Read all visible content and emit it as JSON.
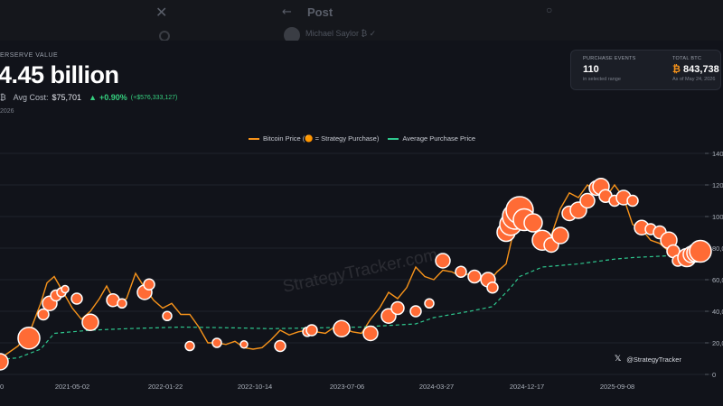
{
  "background": {
    "post_label": "Post",
    "author": "Michael Saylor ₿ ✓"
  },
  "header": {
    "reserve_label": "ERSERVE VALUE",
    "reserve_value": "4.45 billion",
    "currency_glyph": "₿",
    "avg_cost_label": "Avg Cost:",
    "avg_cost": "$75,701",
    "change_arrow": "▲",
    "change_pct": "+0.90%",
    "change_abs": "(+$576,333,127)",
    "date_fragment": "2026"
  },
  "stats": {
    "purchase_events_label": "PURCHASE EVENTS",
    "purchase_events_value": "110",
    "purchase_events_sub": "in selected range",
    "total_btc_label": "TOTAL BTC",
    "total_btc_glyph": "₿",
    "total_btc_value": "843,738",
    "total_btc_sub": "As of May 24, 2026"
  },
  "legend": {
    "price": "Bitcoin Price (🟠 = Strategy Purchase)",
    "avg": "Average Purchase Price"
  },
  "watermark": "StrategyTracker.com",
  "credit": {
    "x_glyph": "𝕏",
    "handle": "@StrategyTracker"
  },
  "colors": {
    "price": "#f7931a",
    "avg": "#2ec78e",
    "bubble": "#ff6b35",
    "bubble_stroke": "#ffffff"
  },
  "chart_data": {
    "type": "line",
    "x_tick_labels": [
      "0",
      "2021-05-02",
      "2022-01-22",
      "2022-10-14",
      "2023-07-06",
      "2024-03-27",
      "2024-12-17",
      "2025-09-08"
    ],
    "y_tick_labels": [
      "0",
      "20,0",
      "40,0",
      "60,0",
      "80,0",
      "100,0",
      "120,0",
      "140,0"
    ],
    "ylim": [
      0,
      140000
    ],
    "series": [
      {
        "name": "Bitcoin Price (🟠 = Strategy Purchase)",
        "x": [
          0,
          20,
          35,
          45,
          52,
          60,
          70,
          80,
          90,
          100,
          110,
          118,
          128,
          140,
          150,
          160,
          170,
          180,
          190,
          200,
          210,
          220,
          230,
          240,
          250,
          260,
          270,
          280,
          290,
          300,
          310,
          320,
          330,
          340,
          350,
          360,
          370,
          380,
          390,
          400,
          410,
          420,
          430,
          440,
          450,
          460,
          470,
          480,
          490,
          500,
          510,
          520,
          530,
          540,
          550,
          560,
          570,
          580,
          590,
          600,
          610,
          620,
          630,
          640,
          650,
          660,
          670,
          680,
          690,
          700,
          710,
          720,
          730,
          740,
          750,
          760,
          770,
          780
        ],
        "y": [
          10000,
          18000,
          30000,
          45000,
          58000,
          62000,
          52000,
          42000,
          35000,
          40000,
          48000,
          56000,
          45000,
          48000,
          64000,
          55000,
          47000,
          42000,
          45000,
          38000,
          38000,
          30000,
          20000,
          20000,
          19000,
          21000,
          17000,
          16000,
          17000,
          22000,
          28000,
          25000,
          27000,
          28000,
          27000,
          26000,
          30000,
          29000,
          27000,
          26000,
          35000,
          42000,
          52000,
          48000,
          55000,
          68000,
          62000,
          60000,
          66000,
          65000,
          62000,
          64000,
          60000,
          58000,
          65000,
          70000,
          95000,
          98000,
          97000,
          88000,
          88000,
          105000,
          115000,
          112000,
          120000,
          116000,
          112000,
          120000,
          112000,
          95000,
          92000,
          85000,
          83000,
          78000,
          76000,
          75000,
          76000,
          78000
        ],
        "color": "#f7931a"
      },
      {
        "name": "Average Purchase Price",
        "x": [
          0,
          20,
          45,
          60,
          100,
          140,
          200,
          260,
          300,
          350,
          400,
          460,
          480,
          520,
          545,
          565,
          575,
          600,
          640,
          680,
          700,
          760
        ],
        "y": [
          9500,
          10500,
          16000,
          26000,
          28000,
          29000,
          30000,
          29500,
          29000,
          29500,
          30000,
          32000,
          36000,
          40000,
          43000,
          55000,
          62000,
          68000,
          70000,
          73000,
          74000,
          75700
        ],
        "color": "#2ec78e"
      }
    ],
    "purchases": {
      "x": [
        0,
        32,
        48,
        55,
        62,
        68,
        72,
        85,
        100,
        125,
        135,
        160,
        165,
        185,
        210,
        240,
        270,
        310,
        340,
        345,
        378,
        410,
        430,
        440,
        460,
        475,
        490,
        510,
        525,
        540,
        545,
        560,
        565,
        570,
        575,
        580,
        590,
        600,
        610,
        620,
        630,
        640,
        650,
        660,
        665,
        670,
        680,
        690,
        700,
        710,
        720,
        730,
        740,
        745,
        750,
        760,
        765,
        770,
        775
      ],
      "y": [
        8000,
        23000,
        38000,
        45000,
        50000,
        52000,
        54000,
        48000,
        33000,
        47000,
        45000,
        52000,
        57000,
        37000,
        18000,
        20000,
        19000,
        18000,
        27000,
        28000,
        29000,
        26000,
        37000,
        42000,
        40000,
        45000,
        72000,
        65000,
        62000,
        60000,
        55000,
        90000,
        95000,
        100000,
        104000,
        98000,
        96000,
        85000,
        82000,
        88000,
        102000,
        104000,
        110000,
        118000,
        119000,
        113000,
        110000,
        112000,
        110000,
        93000,
        92000,
        90000,
        85000,
        78000,
        72000,
        74000,
        76000,
        77000,
        78000
      ],
      "r": [
        9,
        12,
        6,
        8,
        6,
        5,
        4,
        6,
        9,
        7,
        5,
        8,
        6,
        5,
        5,
        5,
        4,
        6,
        5,
        6,
        9,
        8,
        8,
        7,
        6,
        5,
        8,
        6,
        7,
        8,
        6,
        10,
        12,
        14,
        15,
        12,
        10,
        11,
        8,
        9,
        8,
        9,
        8,
        8,
        9,
        7,
        6,
        8,
        6,
        8,
        6,
        7,
        9,
        7,
        6,
        10,
        9,
        10,
        12
      ]
    }
  }
}
